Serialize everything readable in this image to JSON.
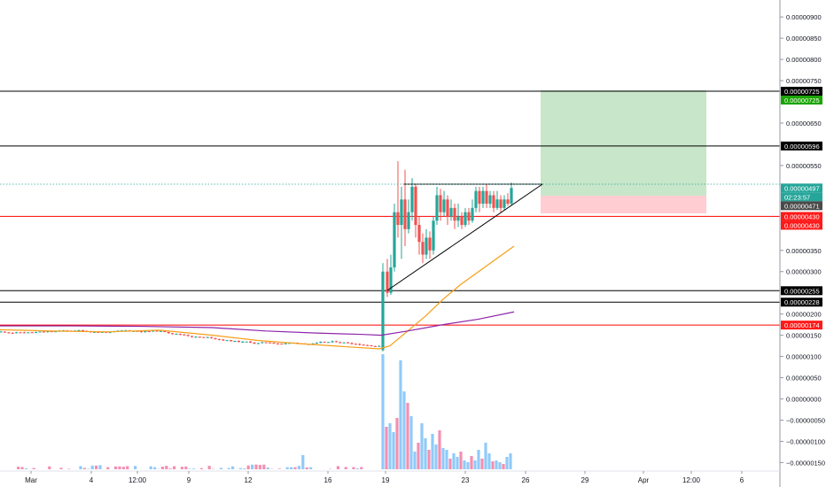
{
  "colors": {
    "up": "#26a69a",
    "down": "#ef5350",
    "ema_fast": "#f59f16",
    "ema_slow": "#8e24aa",
    "target_zone": "#c8e6c9",
    "stop_zone": "#ffcdd2",
    "level_black": "#000000",
    "level_red": "#ff0000",
    "vol_up": "#90caf9",
    "vol_down": "#f48fb1",
    "tag_green": "#18a400",
    "tag_teal": "#26a69a",
    "tag_grey": "#4a4a4a",
    "tag_red": "#ff1a1a"
  },
  "price_axis": {
    "ticks": [
      "0.00000900",
      "0.00000850",
      "0.00000800",
      "0.00000750",
      "0.00000650",
      "0.00000550",
      "0.00000350",
      "0.00000300",
      "0.00000200",
      "0.00000150",
      "0.00000100",
      "0.00000050",
      "0.00000000",
      "−0.00000050",
      "−0.00000100",
      "−0.00000150"
    ]
  },
  "time_axis": {
    "labels": [
      "Mar",
      "4",
      "12:00",
      "9",
      "12",
      "16",
      "19",
      "23",
      "26",
      "29",
      "Apr",
      "12:00",
      "6"
    ]
  },
  "price_tags": [
    {
      "text": "0.00000725",
      "color": "tag_black"
    },
    {
      "text": "0.00000725",
      "color": "tag_green"
    },
    {
      "text": "0.00000596",
      "color": "tag_black"
    },
    {
      "text": "0.00000497",
      "color": "tag_teal"
    },
    {
      "text": "02:23:57",
      "color": "tag_teal"
    },
    {
      "text": "0.00000471",
      "color": "tag_grey"
    },
    {
      "text": "0.00000430",
      "color": "tag_red"
    },
    {
      "text": "0.00000430",
      "color": "tag_red"
    },
    {
      "text": "0.00000255",
      "color": "tag_black"
    },
    {
      "text": "0.00000228",
      "color": "tag_black"
    },
    {
      "text": "0.00000174",
      "color": "tag_red"
    }
  ],
  "chart_data": {
    "type": "candlestick",
    "grid": false,
    "x_range": [
      "Mar",
      "6"
    ],
    "y_range": [
      -1.7e-06,
      9.4e-06
    ],
    "horizontal_levels": [
      {
        "price": 7.25e-06,
        "color": "black"
      },
      {
        "price": 5.96e-06,
        "color": "black"
      },
      {
        "price": 4.3e-06,
        "color": "red"
      },
      {
        "price": 2.55e-06,
        "color": "black"
      },
      {
        "price": 2.28e-06,
        "color": "black"
      },
      {
        "price": 1.74e-06,
        "color": "red"
      }
    ],
    "current_price": 4.97e-06,
    "countdown": "02:23:57",
    "position": {
      "entry": 4.97e-06,
      "target": 7.25e-06,
      "stop": 4.71e-06,
      "from_date": "27",
      "to_date": "2 Apr 12:00"
    },
    "triangle": {
      "resistance": 5e-06,
      "support_start": 2.5e-06,
      "support_end": 5e-06
    },
    "phases": [
      {
        "label": "Mar–19",
        "price_range": [
          1.05e-06,
          1.8e-06
        ],
        "note": "low flat range"
      },
      {
        "label": "19",
        "price_range": [
          1.1e-06,
          5.6e-06
        ],
        "note": "breakout spike"
      },
      {
        "label": "19–26",
        "price_range": [
          3.3e-06,
          5e-06
        ],
        "note": "ascending triangle"
      }
    ]
  }
}
